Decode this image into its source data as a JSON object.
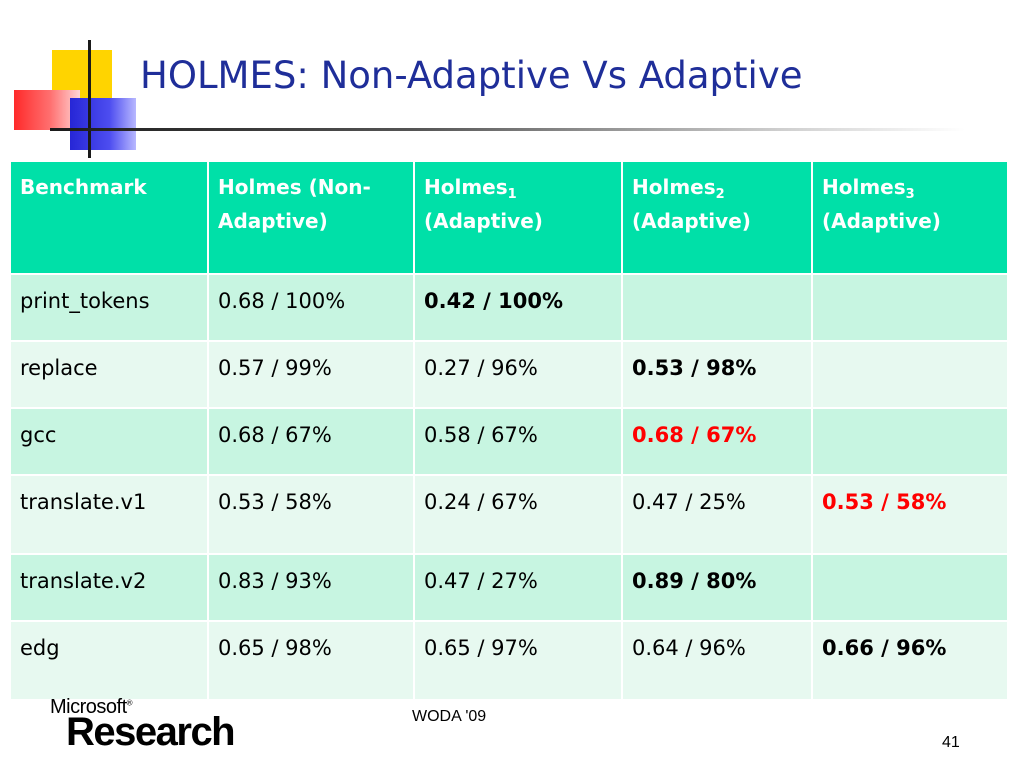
{
  "title": "HOLMES: Non-Adaptive Vs Adaptive",
  "table": {
    "headers": [
      {
        "main": "Benchmark",
        "sub": "",
        "suffix": ""
      },
      {
        "main": "Holmes (Non-Adaptive)",
        "sub": "",
        "suffix": ""
      },
      {
        "main": "Holmes",
        "sub": "1",
        "suffix": "(Adaptive)"
      },
      {
        "main": "Holmes",
        "sub": "2",
        "suffix": "(Adaptive)"
      },
      {
        "main": "Holmes",
        "sub": "3",
        "suffix": "(Adaptive)"
      }
    ],
    "rows": [
      {
        "cells": [
          "print_tokens",
          "0.68 / 100%",
          "0.42 / 100%",
          "",
          ""
        ],
        "emphasis": [
          "",
          "",
          "bold",
          "",
          ""
        ]
      },
      {
        "cells": [
          "replace",
          "0.57 / 99%",
          "0.27 / 96%",
          "0.53 / 98%",
          ""
        ],
        "emphasis": [
          "",
          "",
          "",
          "bold",
          ""
        ]
      },
      {
        "cells": [
          "gcc",
          "0.68 / 67%",
          "0.58 / 67%",
          "0.68 / 67%",
          ""
        ],
        "emphasis": [
          "",
          "",
          "",
          "red",
          ""
        ]
      },
      {
        "cells": [
          "translate.v1",
          "0.53 / 58%",
          "0.24 / 67%",
          "0.47 / 25%",
          "0.53 / 58%"
        ],
        "emphasis": [
          "",
          "",
          "",
          "",
          "red"
        ]
      },
      {
        "cells": [
          "translate.v2",
          "0.83 / 93%",
          "0.47 / 27%",
          "0.89 / 80%",
          ""
        ],
        "emphasis": [
          "",
          "",
          "",
          "bold",
          ""
        ]
      },
      {
        "cells": [
          "edg",
          "0.65 / 98%",
          "0.65 / 97%",
          "0.64 / 96%",
          "0.66 / 96%"
        ],
        "emphasis": [
          "",
          "",
          "",
          "",
          "bold"
        ]
      }
    ]
  },
  "footer": {
    "logo_top": "Microsoft",
    "logo_trademark": "®",
    "logo_bottom": "Research",
    "center": "WODA '09",
    "page_number": "41"
  },
  "colors": {
    "title": "#1f2e99",
    "header_bg": "#00e0a8",
    "row_dark": "#c7f5e1",
    "row_light": "#e7f9f0",
    "highlight_red": "#ff0000"
  }
}
